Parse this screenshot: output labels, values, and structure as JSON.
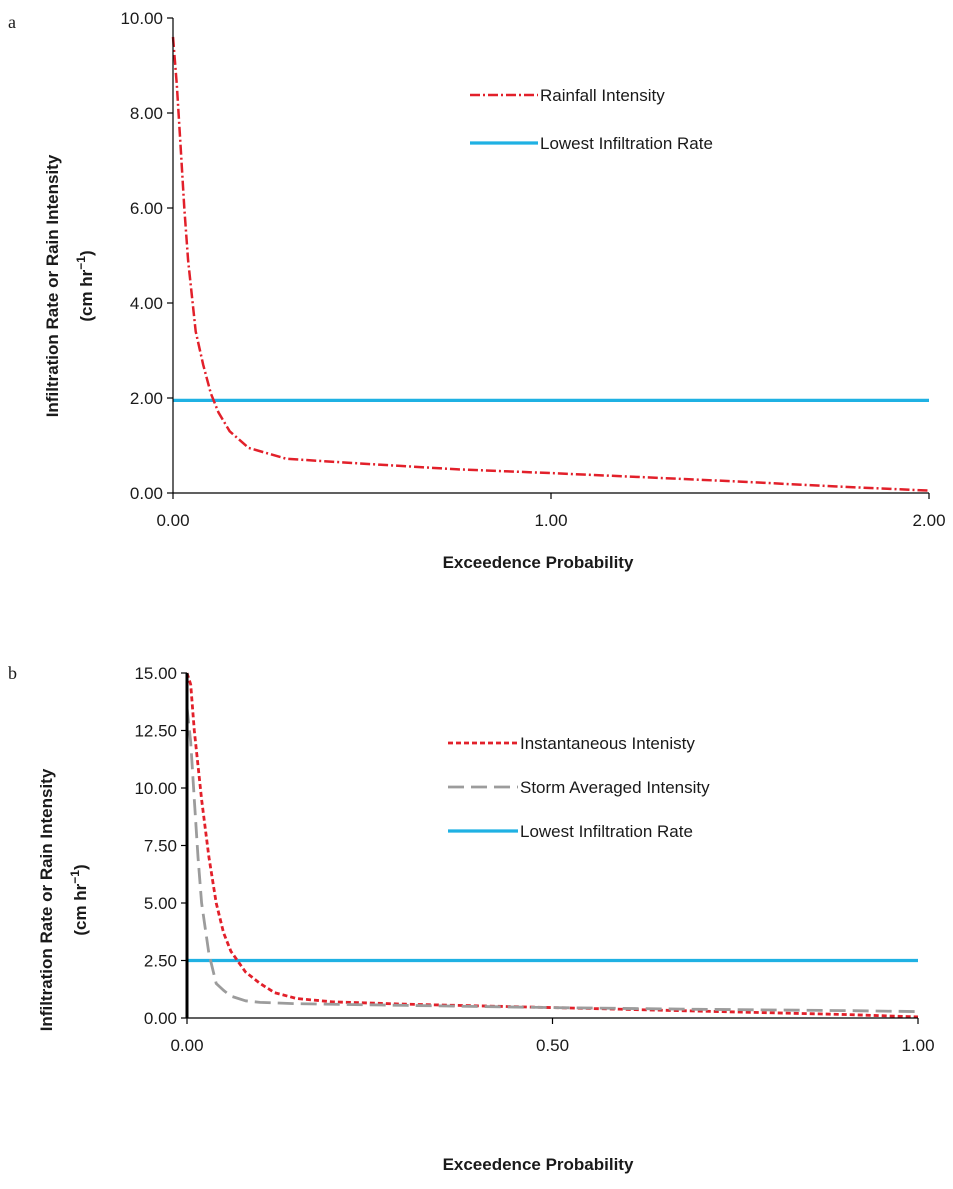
{
  "colors": {
    "red": "#e2202a",
    "gray": "#9c9c9c",
    "blue": "#1fb1e3",
    "axis": "#000000"
  },
  "chart_data": [
    {
      "type": "line",
      "panel_label": "a",
      "xlabel": "Exceedence Probability",
      "ylabel": "Infiltration Rate or Rain Intensity",
      "ylabel_unit_base": "(cm hr",
      "ylabel_unit_exp": "−1",
      "ylabel_unit_close": ")",
      "xlim": [
        0,
        2.0
      ],
      "ylim": [
        0,
        10.0
      ],
      "x_ticks": [
        0,
        1,
        2
      ],
      "x_tick_labels": [
        "0.00",
        "1.00",
        "2.00"
      ],
      "y_ticks": [
        0,
        2,
        4,
        6,
        8,
        10
      ],
      "y_tick_labels": [
        "0.00",
        "2.00",
        "4.00",
        "6.00",
        "8.00",
        "10.00"
      ],
      "legend_position": "top-right",
      "series": [
        {
          "name": "Rainfall Intensity",
          "style": "red-dotdash",
          "x": [
            0,
            0.01,
            0.02,
            0.03,
            0.04,
            0.06,
            0.08,
            0.1,
            0.12,
            0.15,
            0.2,
            0.3,
            0.5,
            0.75,
            1.0,
            1.25,
            1.5,
            1.75,
            2.0
          ],
          "y": [
            9.6,
            8.6,
            7.3,
            6.0,
            4.9,
            3.4,
            2.7,
            2.1,
            1.7,
            1.3,
            0.95,
            0.72,
            0.62,
            0.5,
            0.42,
            0.33,
            0.24,
            0.14,
            0.05
          ]
        },
        {
          "name": "Lowest Infiltration Rate",
          "style": "blue-solid",
          "x": [
            0,
            2.0
          ],
          "y": [
            1.95,
            1.95
          ]
        }
      ]
    },
    {
      "type": "line",
      "panel_label": "b",
      "xlabel": "Exceedence Probability",
      "ylabel": "Infiltration Rate or Rain Intensity",
      "ylabel_unit_base": "(cm hr",
      "ylabel_unit_exp": "−1",
      "ylabel_unit_close": ")",
      "xlim": [
        0,
        1.0
      ],
      "ylim": [
        0,
        15.0
      ],
      "x_ticks": [
        0,
        0.5,
        1.0
      ],
      "x_tick_labels": [
        "0.00",
        "0.50",
        "1.00"
      ],
      "y_ticks": [
        0,
        2.5,
        5,
        7.5,
        10,
        12.5,
        15
      ],
      "y_tick_labels": [
        "0.00",
        "2.50",
        "5.00",
        "7.50",
        "10.00",
        "12.50",
        "15.00"
      ],
      "legend_position": "top-right",
      "series": [
        {
          "name": "Instantaneous Intenisty",
          "style": "red-dotted",
          "x": [
            0,
            0.005,
            0.01,
            0.02,
            0.03,
            0.04,
            0.05,
            0.06,
            0.08,
            0.1,
            0.12,
            0.15,
            0.2,
            0.3,
            0.5,
            0.7,
            0.9,
            1.0
          ],
          "y": [
            15.0,
            14.5,
            12.5,
            9.5,
            7.0,
            5.0,
            3.7,
            2.9,
            2.0,
            1.5,
            1.1,
            0.85,
            0.7,
            0.6,
            0.45,
            0.3,
            0.15,
            0.05
          ]
        },
        {
          "name": "Storm Averaged Intensity",
          "style": "gray-dashed",
          "x": [
            0,
            0.005,
            0.01,
            0.015,
            0.02,
            0.03,
            0.04,
            0.05,
            0.06,
            0.08,
            0.1,
            0.15,
            0.3,
            0.5,
            0.7,
            0.9,
            1.0
          ],
          "y": [
            13.5,
            12.0,
            9.5,
            7.0,
            5.0,
            2.8,
            1.5,
            1.2,
            0.95,
            0.75,
            0.68,
            0.62,
            0.55,
            0.45,
            0.38,
            0.32,
            0.28
          ]
        },
        {
          "name": "Lowest Infiltration Rate",
          "style": "blue-solid",
          "x": [
            0,
            1.0
          ],
          "y": [
            2.5,
            2.5
          ]
        }
      ]
    }
  ]
}
